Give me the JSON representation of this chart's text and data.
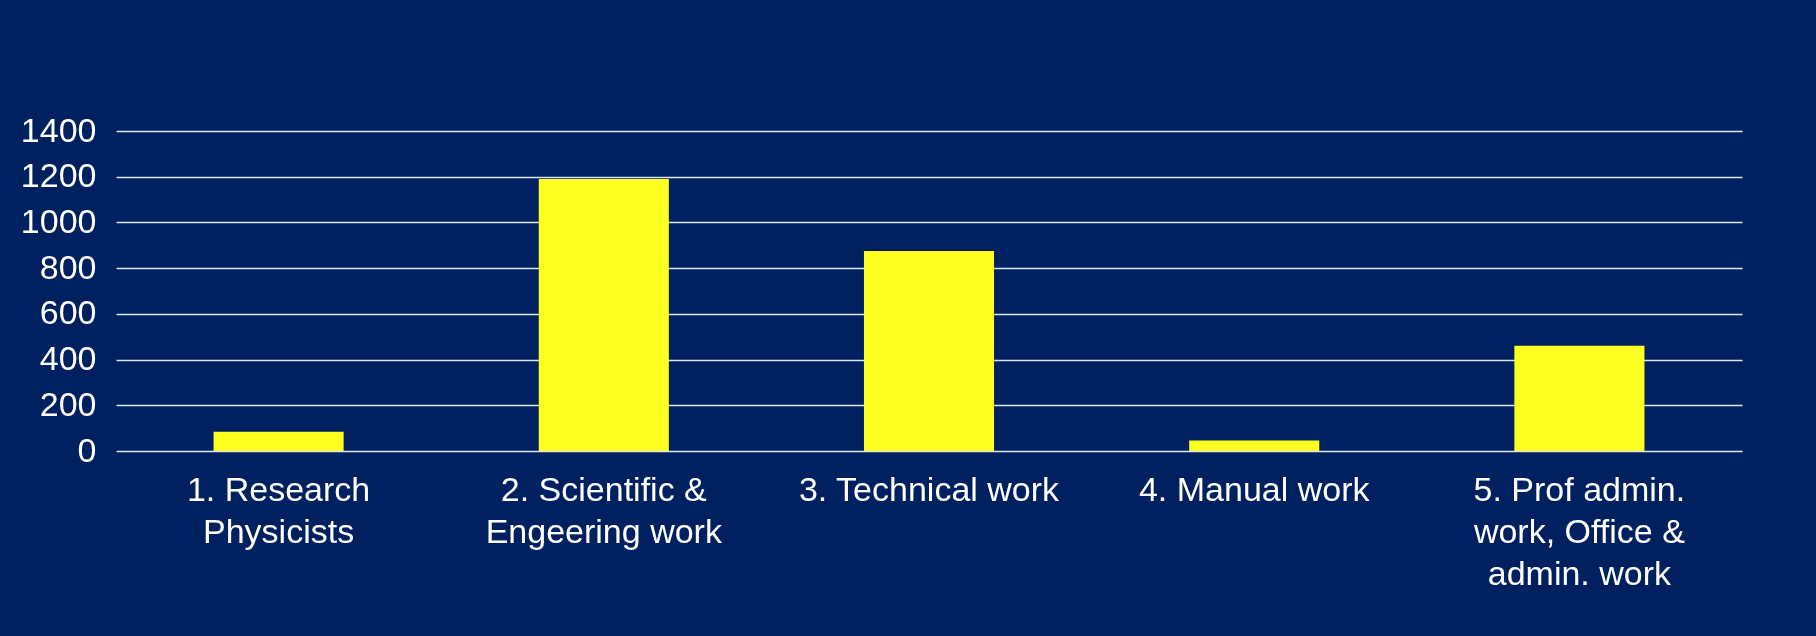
{
  "chart_data": {
    "type": "bar",
    "categories": [
      "1. Research Physicists",
      "2. Scientific & Engeering work",
      "3. Technical work",
      "4. Manual work",
      "5. Prof admin. work, Office & admin. work"
    ],
    "values": [
      84,
      1190,
      875,
      46,
      460
    ],
    "color": "#ffff22",
    "ylim": [
      0,
      1400
    ],
    "yticks": [
      0,
      200,
      400,
      600,
      800,
      1000,
      1200,
      1400
    ],
    "grid": "y"
  }
}
